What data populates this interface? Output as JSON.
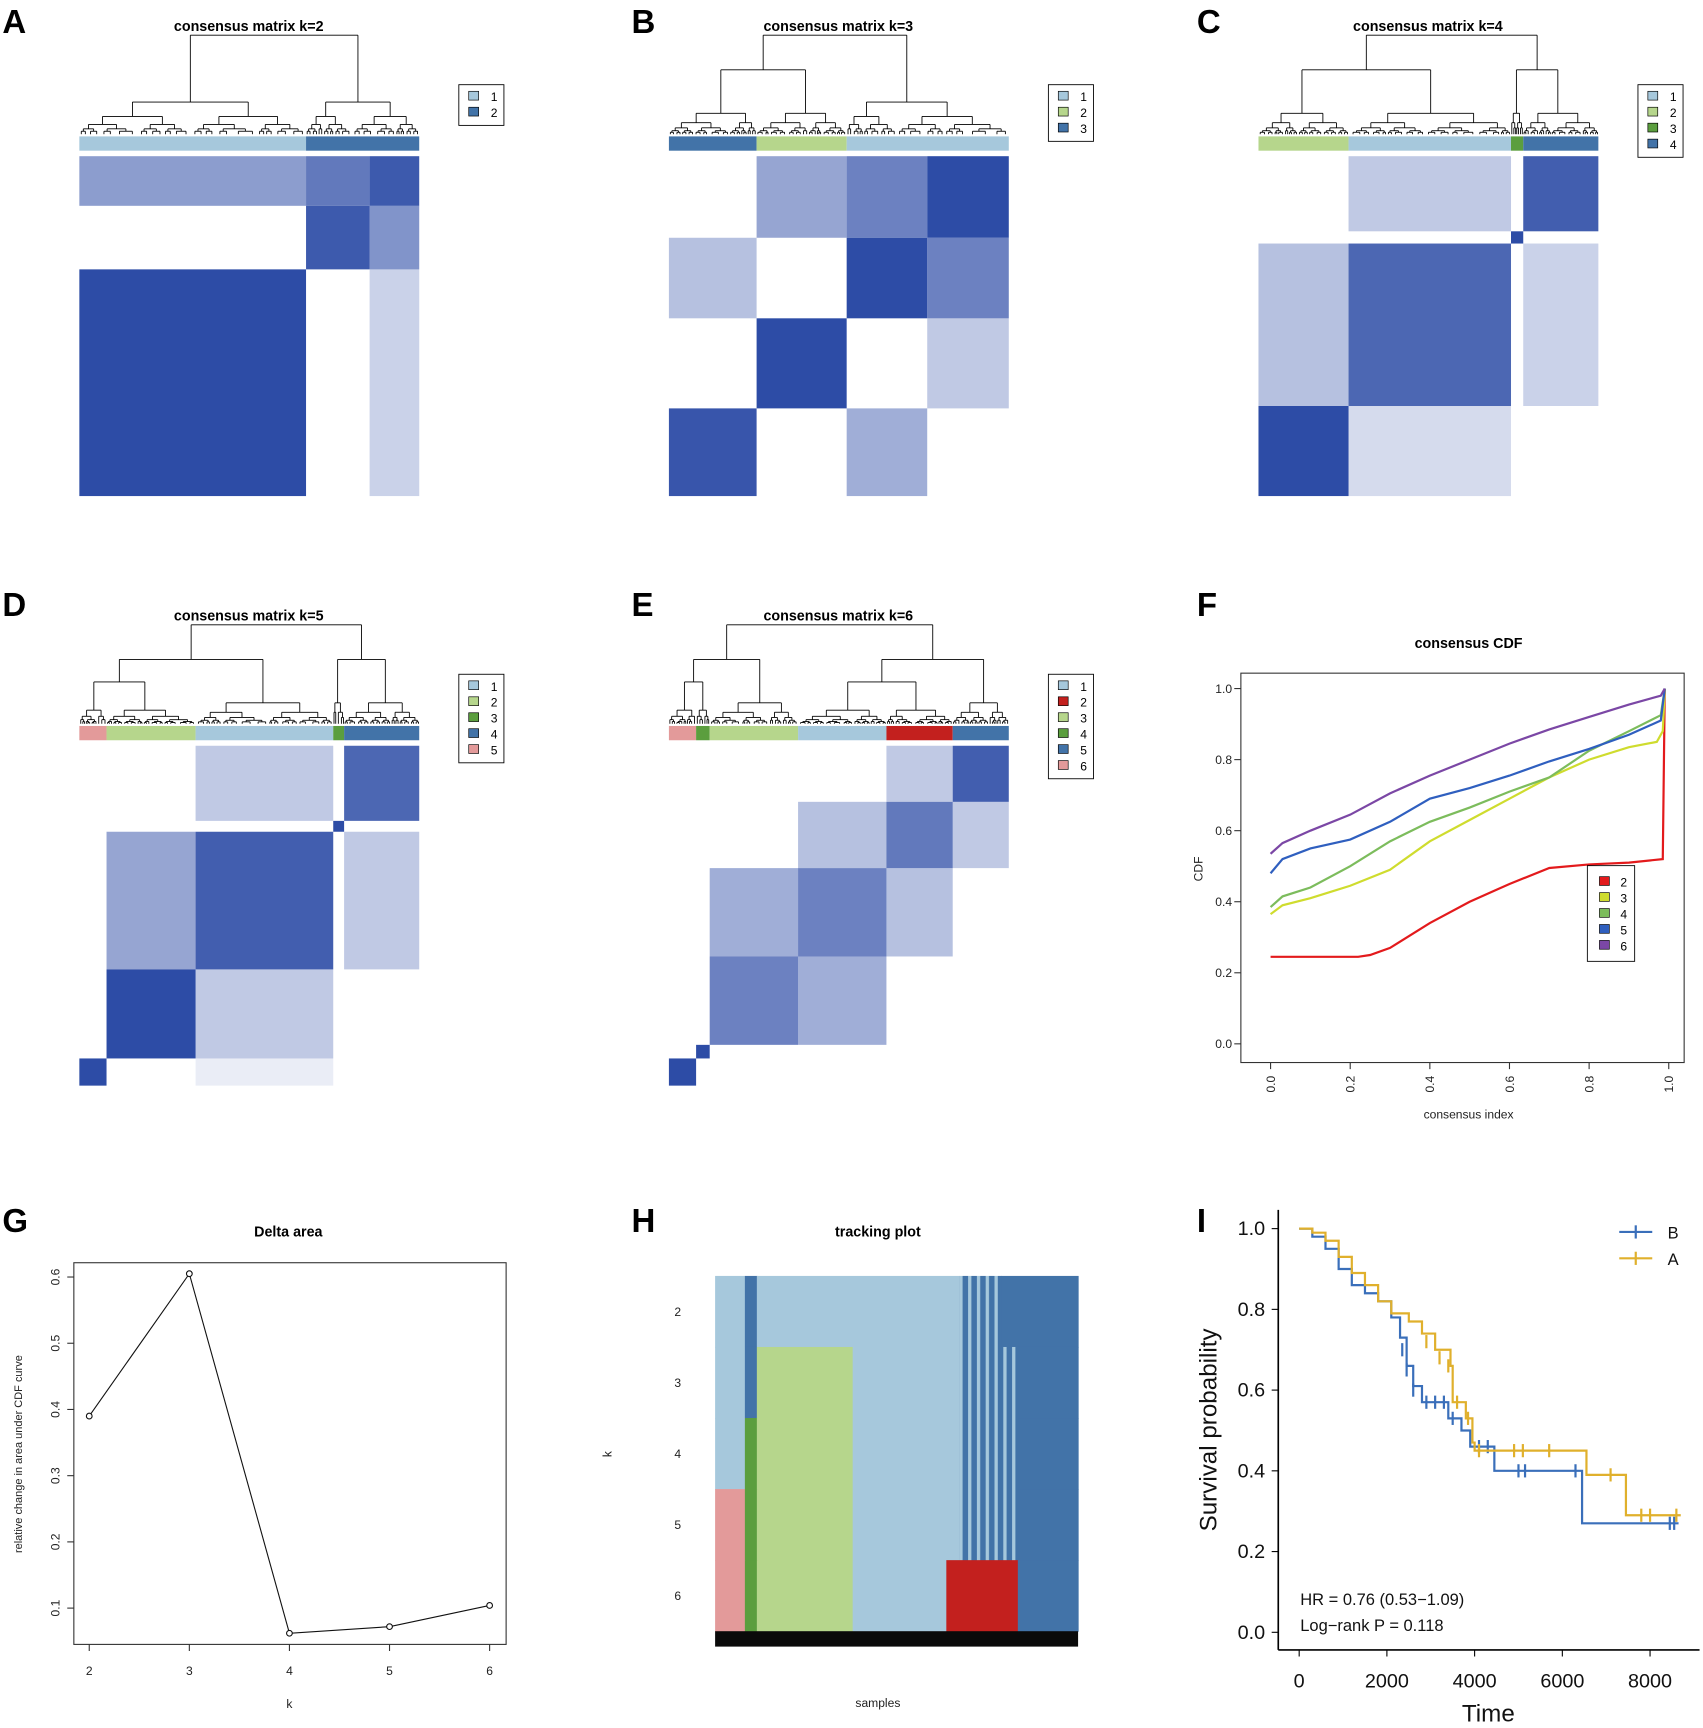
{
  "colors": {
    "lightblue": "#a6c8dc",
    "lightgreen": "#b6d68c",
    "green": "#5b9e3e",
    "steel": "#4273a8",
    "pink": "#e39a9a",
    "red": "#c3201e",
    "heat": "#2d4ca6",
    "cdf2": "#e31a1c",
    "cdf3": "#cfdc2e",
    "cdf4": "#7cbc5c",
    "cdf5": "#2f5fbf",
    "cdf6": "#7b47a5",
    "kmB": "#3a6fba",
    "kmA": "#e0b02c"
  },
  "panel_labels": [
    "A",
    "B",
    "C",
    "D",
    "E",
    "F",
    "G",
    "H",
    "I"
  ],
  "chart_data": [
    {
      "type": "heatmap",
      "title": "consensus matrix k=2",
      "legend": [
        "1",
        "2"
      ],
      "legend_colors": [
        "lightblue",
        "steel"
      ],
      "cluster_bar": [
        [
          0.667,
          "lightblue"
        ],
        [
          0.333,
          "steel"
        ]
      ],
      "blocks": [
        [
          0.667,
          1.0
        ],
        [
          0.187,
          0.92
        ],
        [
          0.146,
          0.92
        ]
      ],
      "cross": [
        [
          0,
          2,
          0.55
        ],
        [
          1,
          2,
          0.75
        ],
        [
          2,
          1,
          0.6
        ],
        [
          2,
          0,
          0.25
        ]
      ]
    },
    {
      "type": "heatmap",
      "title": "consensus matrix k=3",
      "legend": [
        "1",
        "2",
        "3"
      ],
      "legend_colors": [
        "lightblue",
        "lightgreen",
        "steel"
      ],
      "cluster_bar": [
        [
          0.258,
          "steel"
        ],
        [
          0.265,
          "lightgreen"
        ],
        [
          0.477,
          "lightblue"
        ]
      ],
      "blocks": [
        [
          0.258,
          0.95
        ],
        [
          0.265,
          1.0
        ],
        [
          0.237,
          1.0
        ],
        [
          0.24,
          1.0
        ]
      ],
      "cross": [
        [
          2,
          3,
          0.7
        ],
        [
          3,
          2,
          0.7
        ],
        [
          1,
          3,
          0.5
        ],
        [
          0,
          2,
          0.35
        ],
        [
          2,
          0,
          0.45
        ],
        [
          3,
          1,
          0.3
        ]
      ]
    },
    {
      "type": "heatmap",
      "title": "consensus matrix k=4",
      "legend": [
        "1",
        "2",
        "3",
        "4"
      ],
      "legend_colors": [
        "lightblue",
        "lightgreen",
        "green",
        "steel"
      ],
      "cluster_bar": [
        [
          0.265,
          "lightgreen"
        ],
        [
          0.478,
          "lightblue"
        ],
        [
          0.036,
          "green"
        ],
        [
          0.221,
          "steel"
        ]
      ],
      "blocks": [
        [
          0.265,
          1.0
        ],
        [
          0.478,
          0.85
        ],
        [
          0.036,
          1.0
        ],
        [
          0.221,
          0.9
        ]
      ],
      "cross": [
        [
          0,
          1,
          0.35
        ],
        [
          1,
          0,
          0.2
        ],
        [
          1,
          3,
          0.3
        ],
        [
          3,
          1,
          0.25
        ]
      ]
    },
    {
      "type": "heatmap",
      "title": "consensus matrix k=5",
      "legend": [
        "1",
        "2",
        "3",
        "4",
        "5"
      ],
      "legend_colors": [
        "lightblue",
        "lightgreen",
        "green",
        "steel",
        "pink"
      ],
      "cluster_bar": [
        [
          0.08,
          "pink"
        ],
        [
          0.262,
          "lightgreen"
        ],
        [
          0.405,
          "lightblue"
        ],
        [
          0.032,
          "green"
        ],
        [
          0.221,
          "steel"
        ]
      ],
      "blocks": [
        [
          0.08,
          1.0
        ],
        [
          0.262,
          1.0
        ],
        [
          0.405,
          0.9
        ],
        [
          0.032,
          1.0
        ],
        [
          0.221,
          0.85
        ]
      ],
      "cross": [
        [
          1,
          2,
          0.5
        ],
        [
          2,
          1,
          0.3
        ],
        [
          2,
          4,
          0.3
        ],
        [
          4,
          2,
          0.3
        ],
        [
          2,
          0,
          0.1
        ]
      ]
    },
    {
      "type": "heatmap",
      "title": "consensus matrix k=6",
      "legend": [
        "1",
        "2",
        "3",
        "4",
        "5",
        "6"
      ],
      "legend_colors": [
        "lightblue",
        "red",
        "lightgreen",
        "green",
        "steel",
        "pink"
      ],
      "cluster_bar": [
        [
          0.08,
          "pink"
        ],
        [
          0.04,
          "green"
        ],
        [
          0.26,
          "lightgreen"
        ],
        [
          0.26,
          "lightblue"
        ],
        [
          0.195,
          "red"
        ],
        [
          0.165,
          "steel"
        ]
      ],
      "blocks": [
        [
          0.08,
          1.0
        ],
        [
          0.04,
          1.0
        ],
        [
          0.26,
          0.7
        ],
        [
          0.26,
          0.7
        ],
        [
          0.195,
          0.75
        ],
        [
          0.165,
          0.9
        ]
      ],
      "cross": [
        [
          2,
          3,
          0.45
        ],
        [
          3,
          2,
          0.45
        ],
        [
          3,
          4,
          0.35
        ],
        [
          4,
          3,
          0.35
        ],
        [
          4,
          5,
          0.3
        ],
        [
          5,
          4,
          0.3
        ]
      ]
    },
    {
      "type": "line",
      "title": "consensus CDF",
      "xlabel": "consensus index",
      "ylabel": "CDF",
      "xlim": [
        0,
        1
      ],
      "ylim": [
        0,
        1
      ],
      "xticks": [
        "0.0",
        "0.2",
        "0.4",
        "0.6",
        "0.8",
        "1.0"
      ],
      "yticks": [
        "0.0",
        "0.2",
        "0.4",
        "0.6",
        "0.8",
        "1.0"
      ],
      "legend": "center-right",
      "series": [
        {
          "name": "2",
          "color": "cdf2",
          "points": [
            [
              0,
              0.245
            ],
            [
              0.1,
              0.245
            ],
            [
              0.22,
              0.245
            ],
            [
              0.25,
              0.25
            ],
            [
              0.3,
              0.27
            ],
            [
              0.4,
              0.34
            ],
            [
              0.5,
              0.4
            ],
            [
              0.6,
              0.45
            ],
            [
              0.7,
              0.495
            ],
            [
              0.8,
              0.505
            ],
            [
              0.9,
              0.51
            ],
            [
              0.985,
              0.52
            ],
            [
              0.99,
              1.0
            ]
          ]
        },
        {
          "name": "3",
          "color": "cdf3",
          "points": [
            [
              0,
              0.365
            ],
            [
              0.03,
              0.39
            ],
            [
              0.1,
              0.41
            ],
            [
              0.2,
              0.445
            ],
            [
              0.3,
              0.49
            ],
            [
              0.4,
              0.57
            ],
            [
              0.5,
              0.63
            ],
            [
              0.6,
              0.69
            ],
            [
              0.7,
              0.75
            ],
            [
              0.8,
              0.8
            ],
            [
              0.9,
              0.835
            ],
            [
              0.97,
              0.85
            ],
            [
              0.985,
              0.88
            ],
            [
              0.99,
              1.0
            ]
          ]
        },
        {
          "name": "4",
          "color": "cdf4",
          "points": [
            [
              0,
              0.385
            ],
            [
              0.03,
              0.415
            ],
            [
              0.1,
              0.44
            ],
            [
              0.2,
              0.5
            ],
            [
              0.3,
              0.57
            ],
            [
              0.4,
              0.625
            ],
            [
              0.5,
              0.665
            ],
            [
              0.6,
              0.71
            ],
            [
              0.7,
              0.75
            ],
            [
              0.8,
              0.825
            ],
            [
              0.9,
              0.88
            ],
            [
              0.98,
              0.925
            ],
            [
              0.99,
              1.0
            ]
          ]
        },
        {
          "name": "5",
          "color": "cdf5",
          "points": [
            [
              0,
              0.48
            ],
            [
              0.03,
              0.52
            ],
            [
              0.1,
              0.55
            ],
            [
              0.2,
              0.575
            ],
            [
              0.3,
              0.625
            ],
            [
              0.4,
              0.69
            ],
            [
              0.5,
              0.72
            ],
            [
              0.6,
              0.755
            ],
            [
              0.7,
              0.795
            ],
            [
              0.8,
              0.83
            ],
            [
              0.9,
              0.87
            ],
            [
              0.98,
              0.91
            ],
            [
              0.99,
              1.0
            ]
          ]
        },
        {
          "name": "6",
          "color": "cdf6",
          "points": [
            [
              0,
              0.535
            ],
            [
              0.03,
              0.565
            ],
            [
              0.1,
              0.6
            ],
            [
              0.2,
              0.645
            ],
            [
              0.3,
              0.705
            ],
            [
              0.4,
              0.755
            ],
            [
              0.5,
              0.8
            ],
            [
              0.6,
              0.845
            ],
            [
              0.7,
              0.885
            ],
            [
              0.8,
              0.92
            ],
            [
              0.9,
              0.955
            ],
            [
              0.98,
              0.98
            ],
            [
              0.99,
              1.0
            ]
          ]
        }
      ]
    },
    {
      "type": "line",
      "title": "Delta area",
      "xlabel": "k",
      "ylabel": "relative change in area under CDF curve",
      "x": [
        2,
        3,
        4,
        5,
        6
      ],
      "values": [
        0.39,
        0.605,
        0.062,
        0.072,
        0.104
      ],
      "xticks": [
        "2",
        "3",
        "4",
        "5",
        "6"
      ],
      "yticks": [
        "0.1",
        "0.2",
        "0.3",
        "0.4",
        "0.5",
        "0.6"
      ]
    },
    {
      "type": "heatmap",
      "title": "tracking plot",
      "xlabel": "samples",
      "ylabel": "k",
      "yticks": [
        "2",
        "3",
        "4",
        "5",
        "6"
      ],
      "rows": [
        [
          [
            0.082,
            "lightblue"
          ],
          [
            0.033,
            "steel"
          ],
          [
            0.558,
            "lightblue"
          ],
          [
            0.115,
            "striped"
          ],
          [
            0.212,
            "steel"
          ]
        ],
        [
          [
            0.082,
            "lightblue"
          ],
          [
            0.033,
            "steel"
          ],
          [
            0.264,
            "lightgreen"
          ],
          [
            0.294,
            "lightblue"
          ],
          [
            0.161,
            "striped"
          ],
          [
            0.166,
            "steel"
          ]
        ],
        [
          [
            0.082,
            "lightblue"
          ],
          [
            0.033,
            "green"
          ],
          [
            0.264,
            "lightgreen"
          ],
          [
            0.294,
            "lightblue"
          ],
          [
            0.161,
            "striped"
          ],
          [
            0.166,
            "steel"
          ]
        ],
        [
          [
            0.082,
            "pink"
          ],
          [
            0.033,
            "green"
          ],
          [
            0.264,
            "lightgreen"
          ],
          [
            0.294,
            "lightblue"
          ],
          [
            0.161,
            "striped"
          ],
          [
            0.166,
            "steel"
          ]
        ],
        [
          [
            0.082,
            "pink"
          ],
          [
            0.033,
            "green"
          ],
          [
            0.264,
            "lightgreen"
          ],
          [
            0.258,
            "lightblue"
          ],
          [
            0.197,
            "red"
          ],
          [
            0.166,
            "steel"
          ]
        ]
      ]
    },
    {
      "type": "line",
      "title": "",
      "xlabel": "Time",
      "ylabel": "Survival probability",
      "xlim": [
        0,
        8700
      ],
      "ylim": [
        0,
        1
      ],
      "xticks": [
        "0",
        "2000",
        "4000",
        "6000",
        "8000"
      ],
      "yticks": [
        "0.0",
        "0.2",
        "0.4",
        "0.6",
        "0.8",
        "1.0"
      ],
      "legend_position": "top-right",
      "series": [
        {
          "name": "B",
          "color": "kmB",
          "points": [
            [
              0,
              1
            ],
            [
              300,
              0.98
            ],
            [
              600,
              0.95
            ],
            [
              900,
              0.9
            ],
            [
              1200,
              0.86
            ],
            [
              1500,
              0.84
            ],
            [
              1800,
              0.82
            ],
            [
              2100,
              0.78
            ],
            [
              2300,
              0.73
            ],
            [
              2450,
              0.66
            ],
            [
              2600,
              0.61
            ],
            [
              2800,
              0.57
            ],
            [
              3400,
              0.53
            ],
            [
              3700,
              0.5
            ],
            [
              3900,
              0.46
            ],
            [
              4450,
              0.4
            ],
            [
              6450,
              0.27
            ],
            [
              8650,
              0.27
            ]
          ],
          "censored": [
            [
              2350,
              0.7
            ],
            [
              2450,
              0.65
            ],
            [
              2600,
              0.6
            ],
            [
              2900,
              0.57
            ],
            [
              3100,
              0.57
            ],
            [
              3300,
              0.57
            ],
            [
              3500,
              0.53
            ],
            [
              4100,
              0.46
            ],
            [
              4300,
              0.46
            ],
            [
              5000,
              0.4
            ],
            [
              5150,
              0.4
            ],
            [
              6300,
              0.4
            ],
            [
              8450,
              0.27
            ],
            [
              8550,
              0.27
            ]
          ]
        },
        {
          "name": "A",
          "color": "kmA",
          "points": [
            [
              0,
              1
            ],
            [
              300,
              0.99
            ],
            [
              600,
              0.97
            ],
            [
              900,
              0.93
            ],
            [
              1200,
              0.89
            ],
            [
              1500,
              0.86
            ],
            [
              1800,
              0.82
            ],
            [
              2100,
              0.79
            ],
            [
              2500,
              0.77
            ],
            [
              2800,
              0.74
            ],
            [
              3100,
              0.7
            ],
            [
              3450,
              0.66
            ],
            [
              3500,
              0.57
            ],
            [
              3800,
              0.53
            ],
            [
              3950,
              0.47
            ],
            [
              4000,
              0.45
            ],
            [
              6550,
              0.39
            ],
            [
              7450,
              0.29
            ],
            [
              8700,
              0.29
            ]
          ],
          "censored": [
            [
              2900,
              0.72
            ],
            [
              3200,
              0.68
            ],
            [
              3400,
              0.66
            ],
            [
              3600,
              0.57
            ],
            [
              3850,
              0.53
            ],
            [
              4100,
              0.45
            ],
            [
              4900,
              0.45
            ],
            [
              5100,
              0.45
            ],
            [
              5700,
              0.45
            ],
            [
              7100,
              0.39
            ],
            [
              7800,
              0.29
            ],
            [
              8000,
              0.29
            ],
            [
              8600,
              0.29
            ]
          ]
        }
      ],
      "annotations": [
        "HR = 0.76 (0.53−1.09)",
        "Log−rank P = 0.118"
      ]
    }
  ]
}
